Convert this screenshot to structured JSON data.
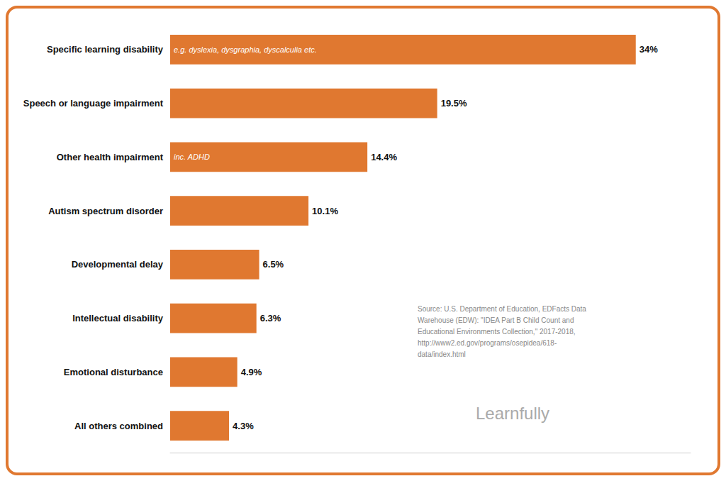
{
  "chart_data": {
    "type": "bar",
    "orientation": "horizontal",
    "categories": [
      "Specific learning disability",
      "Speech or language impairment",
      "Other health impairment",
      "Autism spectrum disorder",
      "Developmental delay",
      "Intellectual disability",
      "Emotional disturbance",
      "All others combined"
    ],
    "values": [
      34.0,
      19.5,
      14.4,
      10.1,
      6.5,
      6.3,
      4.9,
      4.3
    ],
    "value_labels": [
      "34%",
      "19.5%",
      "14.4%",
      "10.1%",
      "6.5%",
      "6.3%",
      "4.9%",
      "4.3%"
    ],
    "data_labels": true,
    "color": "#E07830",
    "xlim": [
      0,
      38
    ],
    "tick_labels": false,
    "grid": false,
    "annotations": [
      {
        "category": "Specific learning disability",
        "text": "e.g. dyslexia, dysgraphia, dyscalculia etc."
      },
      {
        "category": "Other health impairment",
        "text": "inc. ADHD"
      },
      {
        "text": "Source: U.S. Department of Education, EDFacts Data\nWarehouse (EDW): \"IDEA Part B Child Count and\nEducational Environments Collection,\" 2017-2018,\nhttp://www2.ed.gov/programs/osepidea/618-\ndata/index.html"
      },
      {
        "text": "Learnfully"
      }
    ]
  }
}
